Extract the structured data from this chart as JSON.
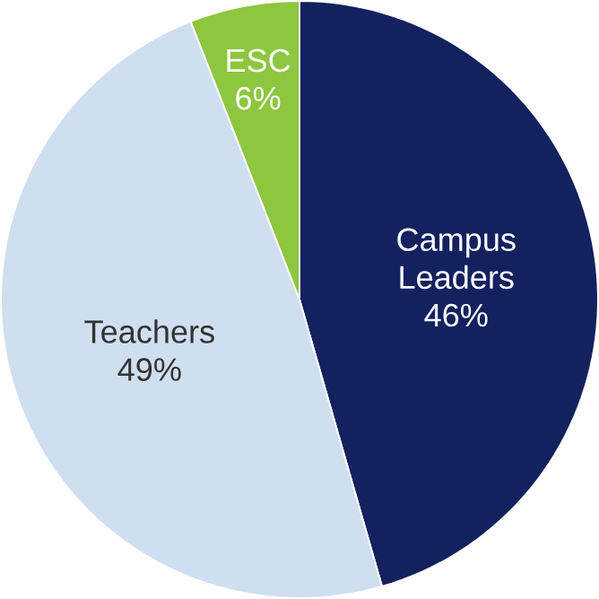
{
  "chart_data": {
    "type": "pie",
    "categories": [
      "Campus Leaders",
      "Teachers",
      "ESC"
    ],
    "values": [
      46,
      49,
      6
    ],
    "value_labels": [
      "46%",
      "49%",
      "6%"
    ],
    "colors": [
      "#13215f",
      "#cfdff0",
      "#8dc63f"
    ]
  }
}
